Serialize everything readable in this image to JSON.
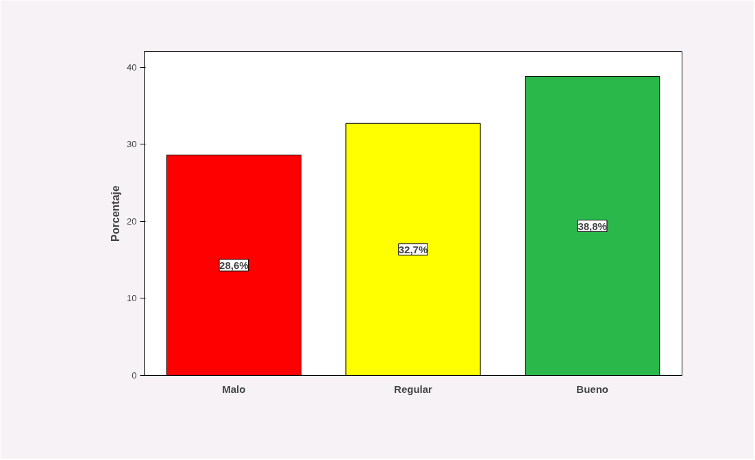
{
  "chart_data": {
    "type": "bar",
    "ylabel": "Porcentaje",
    "categories": [
      "Malo",
      "Regular",
      "Bueno"
    ],
    "values": [
      28.6,
      32.7,
      38.8
    ],
    "colors": [
      "#ff0000",
      "#ffff00",
      "#2bb84a"
    ],
    "value_labels": [
      "28,6%",
      "32,7%",
      "38,8%"
    ],
    "ylim": [
      0,
      42
    ],
    "yticks": [
      0,
      10,
      20,
      30,
      40
    ],
    "grid": false
  }
}
